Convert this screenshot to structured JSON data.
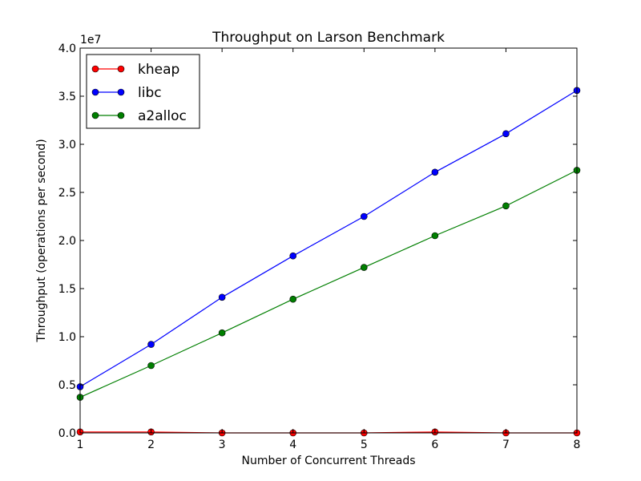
{
  "chart_data": {
    "type": "line",
    "title": "Throughput on Larson Benchmark",
    "xlabel": "Number of Concurrent Threads",
    "ylabel": "Throughput (operations per second)",
    "offset_label": "1e7",
    "xlim": [
      1,
      8
    ],
    "ylim": [
      0,
      4.0
    ],
    "x_ticks": [
      "1",
      "2",
      "3",
      "4",
      "5",
      "6",
      "7",
      "8"
    ],
    "y_ticks": [
      "0.0",
      "0.5",
      "1.0",
      "1.5",
      "2.0",
      "2.5",
      "3.0",
      "3.5",
      "4.0"
    ],
    "grid": false,
    "legend_position": "upper-left",
    "x": [
      1,
      2,
      3,
      4,
      5,
      6,
      7,
      8
    ],
    "series": [
      {
        "name": "kheap",
        "color": "#ff0000",
        "values": [
          0.01,
          0.01,
          0.0,
          0.0,
          0.0,
          0.01,
          0.0,
          0.0
        ]
      },
      {
        "name": "libc",
        "color": "#0000ff",
        "values": [
          0.48,
          0.92,
          1.41,
          1.84,
          2.25,
          2.71,
          3.11,
          3.56
        ]
      },
      {
        "name": "a2alloc",
        "color": "#007f00",
        "values": [
          0.37,
          0.7,
          1.04,
          1.39,
          1.72,
          2.05,
          2.36,
          2.73
        ]
      }
    ]
  }
}
